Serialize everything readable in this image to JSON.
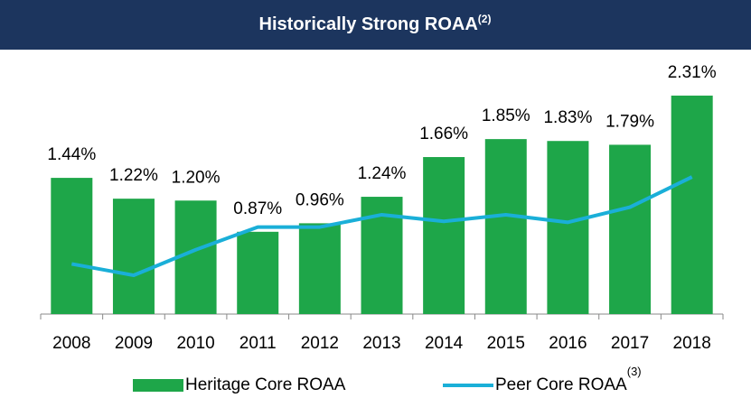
{
  "chart_data": {
    "type": "bar",
    "title": "Historically Strong ROAA",
    "title_note": "(2)",
    "categories": [
      "2008",
      "2009",
      "2010",
      "2011",
      "2012",
      "2013",
      "2014",
      "2015",
      "2016",
      "2017",
      "2018"
    ],
    "series": [
      {
        "name": "Heritage Core ROAA",
        "type": "bar",
        "color": "#1ea649",
        "values": [
          1.44,
          1.22,
          1.2,
          0.87,
          0.96,
          1.24,
          1.66,
          1.85,
          1.83,
          1.79,
          2.31
        ],
        "value_labels": [
          "1.44%",
          "1.22%",
          "1.20%",
          "0.87%",
          "0.96%",
          "1.24%",
          "1.66%",
          "1.85%",
          "1.83%",
          "1.79%",
          "2.31%"
        ]
      },
      {
        "name": "Peer Core ROAA",
        "type": "line",
        "color": "#1aafd8",
        "legend_note": "(3)",
        "values": [
          0.53,
          0.41,
          0.68,
          0.92,
          0.92,
          1.05,
          0.98,
          1.05,
          0.97,
          1.13,
          1.45
        ]
      }
    ],
    "ylim": [
      0,
      2.5
    ]
  }
}
